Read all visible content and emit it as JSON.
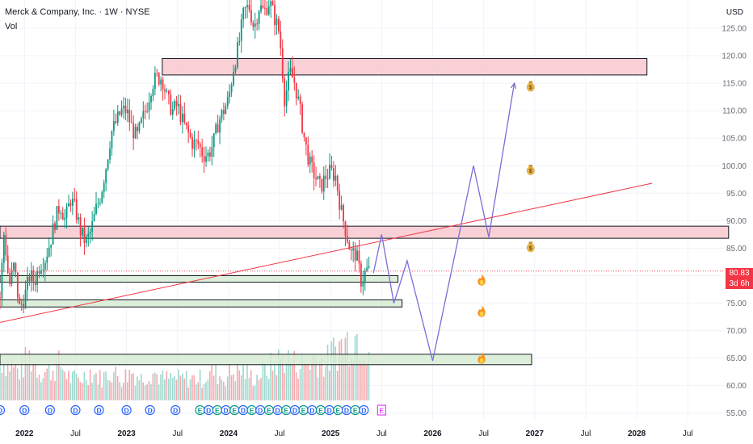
{
  "header": {
    "symbol_line": "Merck & Company, Inc. · 1W · NYSE",
    "volume_label": "Vol",
    "currency": "USD"
  },
  "price_tag": {
    "price": "80.83",
    "countdown": "3d 6h",
    "color": "#f23645"
  },
  "chart_data": {
    "type": "candlestick",
    "title": "Merck & Company, Inc. · 1W · NYSE",
    "ylabel": "USD",
    "ylim": [
      52,
      127
    ],
    "y_ticks": [
      "125.00",
      "120.00",
      "115.00",
      "110.00",
      "105.00",
      "100.00",
      "95.00",
      "90.00",
      "85.00",
      "80.00",
      "75.00",
      "70.00",
      "65.00",
      "60.00",
      "55.00"
    ],
    "x_ticks": [
      "2022",
      "Jul",
      "2023",
      "Jul",
      "2024",
      "Jul",
      "2025",
      "Jul",
      "2026",
      "Jul",
      "2027",
      "Jul",
      "2028",
      "Jul"
    ],
    "x_tick_years": [
      2022.0,
      2022.5,
      2023.0,
      2023.5,
      2024.0,
      2024.5,
      2025.0,
      2025.5,
      2026.0,
      2026.5,
      2027.0,
      2027.5,
      2028.0,
      2028.5
    ],
    "price_path": [
      [
        2021.76,
        76
      ],
      [
        2021.8,
        88
      ],
      [
        2021.85,
        78
      ],
      [
        2021.9,
        82
      ],
      [
        2021.95,
        74
      ],
      [
        2022.0,
        76
      ],
      [
        2022.05,
        80
      ],
      [
        2022.1,
        79
      ],
      [
        2022.15,
        82
      ],
      [
        2022.2,
        83
      ],
      [
        2022.25,
        86
      ],
      [
        2022.3,
        90
      ],
      [
        2022.35,
        93
      ],
      [
        2022.4,
        90
      ],
      [
        2022.45,
        94
      ],
      [
        2022.5,
        92
      ],
      [
        2022.55,
        88
      ],
      [
        2022.6,
        86
      ],
      [
        2022.65,
        88
      ],
      [
        2022.7,
        92
      ],
      [
        2022.75,
        95
      ],
      [
        2022.8,
        100
      ],
      [
        2022.85,
        106
      ],
      [
        2022.9,
        108
      ],
      [
        2022.95,
        110
      ],
      [
        2023.0,
        110
      ],
      [
        2023.05,
        107
      ],
      [
        2023.1,
        105
      ],
      [
        2023.15,
        108
      ],
      [
        2023.2,
        111
      ],
      [
        2023.25,
        115
      ],
      [
        2023.3,
        116
      ],
      [
        2023.35,
        116
      ],
      [
        2023.4,
        112
      ],
      [
        2023.45,
        110
      ],
      [
        2023.5,
        111
      ],
      [
        2023.55,
        108
      ],
      [
        2023.6,
        106
      ],
      [
        2023.65,
        104
      ],
      [
        2023.7,
        104
      ],
      [
        2023.75,
        102
      ],
      [
        2023.8,
        102
      ],
      [
        2023.85,
        104
      ],
      [
        2023.9,
        108
      ],
      [
        2023.95,
        110
      ],
      [
        2024.0,
        112
      ],
      [
        2024.05,
        118
      ],
      [
        2024.1,
        122
      ],
      [
        2024.15,
        128
      ],
      [
        2024.2,
        129
      ],
      [
        2024.25,
        125
      ],
      [
        2024.3,
        129
      ],
      [
        2024.35,
        128
      ],
      [
        2024.4,
        130
      ],
      [
        2024.45,
        127
      ],
      [
        2024.5,
        124
      ],
      [
        2024.55,
        112
      ],
      [
        2024.6,
        117
      ],
      [
        2024.65,
        115
      ],
      [
        2024.7,
        110
      ],
      [
        2024.75,
        104
      ],
      [
        2024.8,
        100
      ],
      [
        2024.85,
        98
      ],
      [
        2024.9,
        96
      ],
      [
        2024.95,
        98
      ],
      [
        2025.0,
        99
      ],
      [
        2025.05,
        98
      ],
      [
        2025.1,
        92
      ],
      [
        2025.15,
        88
      ],
      [
        2025.2,
        84
      ],
      [
        2025.25,
        84
      ],
      [
        2025.3,
        79
      ],
      [
        2025.35,
        81
      ],
      [
        2025.38,
        80.83
      ]
    ],
    "volume_path": [
      [
        2021.76,
        6
      ],
      [
        2021.85,
        5
      ],
      [
        2021.95,
        4
      ],
      [
        2022.05,
        6
      ],
      [
        2022.15,
        4
      ],
      [
        2022.25,
        4
      ],
      [
        2022.35,
        5
      ],
      [
        2022.45,
        3
      ],
      [
        2022.55,
        3
      ],
      [
        2022.65,
        4
      ],
      [
        2022.75,
        3
      ],
      [
        2022.85,
        4
      ],
      [
        2022.95,
        3
      ],
      [
        2023.05,
        4
      ],
      [
        2023.15,
        3
      ],
      [
        2023.25,
        4
      ],
      [
        2023.35,
        3
      ],
      [
        2023.45,
        3
      ],
      [
        2023.55,
        3
      ],
      [
        2023.65,
        3
      ],
      [
        2023.75,
        3
      ],
      [
        2023.85,
        4
      ],
      [
        2023.95,
        3
      ],
      [
        2024.05,
        4
      ],
      [
        2024.15,
        4
      ],
      [
        2024.25,
        3
      ],
      [
        2024.35,
        4
      ],
      [
        2024.45,
        5
      ],
      [
        2024.55,
        6
      ],
      [
        2024.65,
        5
      ],
      [
        2024.75,
        5
      ],
      [
        2024.85,
        6
      ],
      [
        2024.95,
        5
      ],
      [
        2025.05,
        7
      ],
      [
        2025.15,
        8
      ],
      [
        2025.25,
        9
      ],
      [
        2025.35,
        8
      ]
    ],
    "zones": [
      {
        "kind": "resistance",
        "y_low": 116.5,
        "y_high": 119.5,
        "x_start": 2023.35,
        "x_end": 2028.1,
        "color": "#f8c8cf"
      },
      {
        "kind": "resistance",
        "y_low": 86.8,
        "y_high": 89.0,
        "x_start": 2021.76,
        "x_end": 2028.9,
        "color": "#f8c8cf"
      },
      {
        "kind": "support",
        "y_low": 78.8,
        "y_high": 80.0,
        "x_start": 2021.76,
        "x_end": 2025.66,
        "color": "#d7ecd4"
      },
      {
        "kind": "support",
        "y_low": 74.3,
        "y_high": 75.6,
        "x_start": 2021.76,
        "x_end": 2025.7,
        "color": "#d7ecd4"
      },
      {
        "kind": "support",
        "y_low": 63.8,
        "y_high": 65.7,
        "x_start": 2021.76,
        "x_end": 2026.97,
        "color": "#d7ecd4"
      }
    ],
    "trendline": {
      "points": [
        [
          2021.76,
          71.5
        ],
        [
          2028.15,
          96.8
        ]
      ],
      "color": "#f23645"
    },
    "projection": {
      "points": [
        [
          2025.42,
          80.5
        ],
        [
          2025.5,
          87.5
        ],
        [
          2025.62,
          75
        ],
        [
          2025.75,
          82.7
        ],
        [
          2026.0,
          64.5
        ],
        [
          2026.4,
          100
        ],
        [
          2026.55,
          87
        ],
        [
          2026.8,
          115
        ]
      ],
      "color": "#7b6cd8"
    },
    "annotations": [
      {
        "type": "money-bag",
        "x": 2026.96,
        "y": 114.5
      },
      {
        "type": "money-bag",
        "x": 2026.96,
        "y": 99.3
      },
      {
        "type": "money-bag",
        "x": 2026.96,
        "y": 85.3
      },
      {
        "type": "fire",
        "x": 2026.48,
        "y": 79.2
      },
      {
        "type": "fire",
        "x": 2026.48,
        "y": 73.5
      },
      {
        "type": "fire",
        "x": 2026.48,
        "y": 65.0
      }
    ],
    "events": {
      "row_y": 508,
      "dividends": [
        2021.76,
        2022.0,
        2022.25,
        2022.5,
        2022.73,
        2023.0,
        2023.23,
        2023.48
      ],
      "dividend_label": "D",
      "earnings_label": "E",
      "mixed_start": 2023.72,
      "mixed_end": 2025.35,
      "future_earning": 2025.5
    },
    "grid": true,
    "last_price": 80.83
  }
}
